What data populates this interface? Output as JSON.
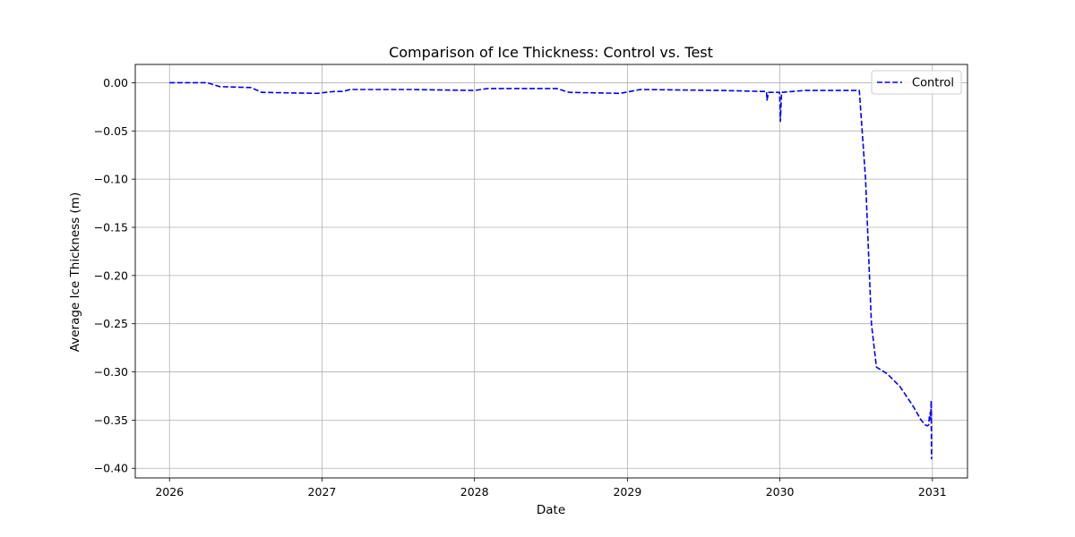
{
  "chart_data": {
    "type": "line",
    "title": "Comparison of Ice Thickness: Control vs. Test",
    "xlabel": "Date",
    "ylabel": "Average Ice Thickness (m)",
    "xlim": [
      "2025-10-11",
      "2031-03-26"
    ],
    "ylim": [
      -0.41,
      0.019
    ],
    "x_ticks": [
      "2026",
      "2027",
      "2028",
      "2029",
      "2030",
      "2031"
    ],
    "y_ticks": [
      "0.00",
      "−0.05",
      "−0.10",
      "−0.15",
      "−0.20",
      "−0.25",
      "−0.30",
      "−0.35",
      "−0.40"
    ],
    "grid": true,
    "legend": {
      "position": "top-right",
      "entries": [
        "Control"
      ]
    },
    "colors": {
      "Control": "#0000ff",
      "grid": "#b0b0b0"
    },
    "series": [
      {
        "name": "Control",
        "style": "dashed",
        "x": [
          "2026-01-01",
          "2026-04-01",
          "2026-05-01",
          "2026-07-15",
          "2026-08-10",
          "2026-12-20",
          "2027-01-31",
          "2027-02-20",
          "2027-03-10",
          "2027-08-01",
          "2028-01-01",
          "2028-02-01",
          "2028-07-15",
          "2028-08-15",
          "2028-12-15",
          "2029-02-01",
          "2029-08-15",
          "2029-11-20",
          "2029-11-30",
          "2029-12-01",
          "2029-12-05",
          "2029-12-31",
          "2030-01-01",
          "2030-01-02",
          "2030-01-05",
          "2030-02-01",
          "2030-03-01",
          "2030-07-10",
          "2030-07-25",
          "2030-08-08",
          "2030-08-20",
          "2030-09-15",
          "2030-10-15",
          "2030-11-15",
          "2030-12-05",
          "2030-12-15",
          "2030-12-20",
          "2030-12-23",
          "2030-12-25",
          "2030-12-27",
          "2030-12-28",
          "2030-12-29",
          "2030-12-30",
          "2030-12-31"
        ],
        "y": [
          0.0,
          0.0,
          -0.004,
          -0.005,
          -0.01,
          -0.011,
          -0.009,
          -0.009,
          -0.007,
          -0.007,
          -0.008,
          -0.006,
          -0.006,
          -0.01,
          -0.011,
          -0.007,
          -0.008,
          -0.009,
          -0.009,
          -0.018,
          -0.01,
          -0.01,
          -0.02,
          -0.04,
          -0.01,
          -0.009,
          -0.008,
          -0.008,
          -0.1,
          -0.25,
          -0.295,
          -0.302,
          -0.315,
          -0.335,
          -0.35,
          -0.355,
          -0.356,
          -0.355,
          -0.345,
          -0.342,
          -0.35,
          -0.33,
          -0.39,
          -0.39
        ]
      }
    ]
  }
}
